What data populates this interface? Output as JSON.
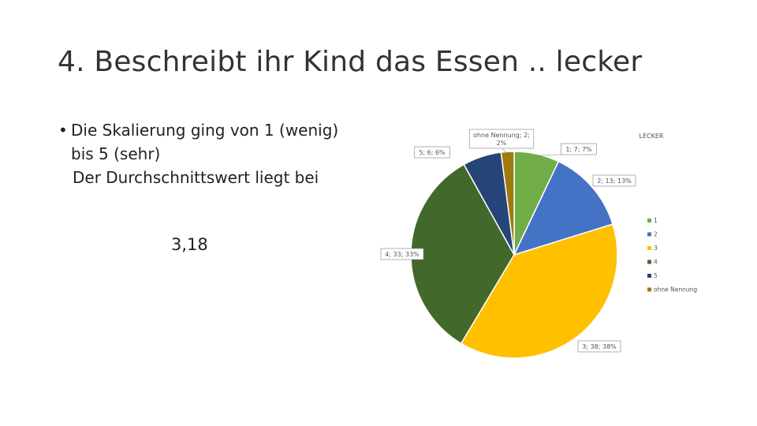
{
  "slide": {
    "title": "4. Beschreibt ihr Kind das Essen .. lecker",
    "bullet": {
      "line1": "Die Skalierung ging von 1 (wenig)",
      "line2": "bis 5 (sehr)",
      "line3": "Der Durchschnittswert liegt bei"
    },
    "average": "3,18"
  },
  "chart_data": {
    "type": "pie",
    "title": "LECKER",
    "categories": [
      "1",
      "2",
      "3",
      "4",
      "5",
      "ohne Nennung"
    ],
    "values": [
      7,
      13,
      38,
      33,
      6,
      2
    ],
    "percentages": [
      7,
      13,
      38,
      33,
      6,
      2
    ],
    "colors": [
      "#70ad47",
      "#4472c4",
      "#ffc000",
      "#43682b",
      "#264478",
      "#9e7a0f"
    ],
    "data_labels": [
      "1; 7; 7%",
      "2; 13; 13%",
      "3; 38; 38%",
      "4; 33; 33%",
      "5; 6; 6%",
      "ohne Nennung; 2; 2%"
    ],
    "legend": [
      "1",
      "2",
      "3",
      "4",
      "5",
      "ohne Nennung"
    ],
    "legend_position": "right"
  }
}
